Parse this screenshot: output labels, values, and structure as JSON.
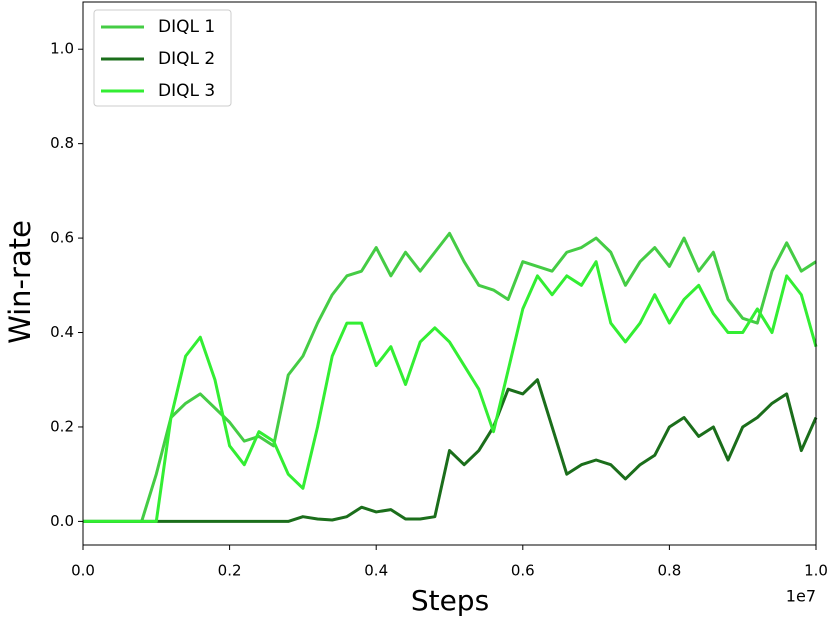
{
  "chart_data": {
    "type": "line",
    "xlabel": "Steps",
    "ylabel": "Win-rate",
    "x_offset_label": "1e7",
    "x": [
      0.0,
      0.02,
      0.04,
      0.06,
      0.08,
      0.1,
      0.12,
      0.14,
      0.16,
      0.18,
      0.2,
      0.22,
      0.24,
      0.26,
      0.28,
      0.3,
      0.32,
      0.34,
      0.36,
      0.38,
      0.4,
      0.42,
      0.44,
      0.46,
      0.48,
      0.5,
      0.52,
      0.54,
      0.56,
      0.58,
      0.6,
      0.62,
      0.64,
      0.66,
      0.68,
      0.7,
      0.72,
      0.74,
      0.76,
      0.78,
      0.8,
      0.82,
      0.84,
      0.86,
      0.88,
      0.9,
      0.92,
      0.94,
      0.96,
      0.98,
      1.0
    ],
    "series": [
      {
        "name": "DIQL 1",
        "color": "#45cc45",
        "values": [
          0,
          0,
          0,
          0,
          0,
          0.1,
          0.22,
          0.25,
          0.27,
          0.24,
          0.21,
          0.17,
          0.18,
          0.16,
          0.31,
          0.35,
          0.42,
          0.48,
          0.52,
          0.53,
          0.58,
          0.52,
          0.57,
          0.53,
          0.57,
          0.61,
          0.55,
          0.5,
          0.49,
          0.47,
          0.55,
          0.54,
          0.53,
          0.57,
          0.58,
          0.6,
          0.57,
          0.5,
          0.55,
          0.58,
          0.54,
          0.6,
          0.53,
          0.57,
          0.47,
          0.43,
          0.42,
          0.53,
          0.59,
          0.53,
          0.55
        ]
      },
      {
        "name": "DIQL 2",
        "color": "#1b6e1b",
        "values": [
          0,
          0,
          0,
          0,
          0,
          0,
          0,
          0,
          0,
          0,
          0,
          0,
          0,
          0,
          0,
          0.01,
          0.005,
          0.003,
          0.01,
          0.03,
          0.02,
          0.025,
          0.005,
          0.005,
          0.01,
          0.15,
          0.12,
          0.15,
          0.2,
          0.28,
          0.27,
          0.3,
          0.2,
          0.1,
          0.12,
          0.13,
          0.12,
          0.09,
          0.12,
          0.14,
          0.2,
          0.22,
          0.18,
          0.2,
          0.13,
          0.2,
          0.22,
          0.25,
          0.27,
          0.15,
          0.22
        ]
      },
      {
        "name": "DIQL 3",
        "color": "#33ee33",
        "values": [
          0,
          0,
          0,
          0,
          0,
          0,
          0.22,
          0.35,
          0.39,
          0.3,
          0.16,
          0.12,
          0.19,
          0.17,
          0.1,
          0.07,
          0.2,
          0.35,
          0.42,
          0.42,
          0.33,
          0.37,
          0.29,
          0.38,
          0.41,
          0.38,
          0.33,
          0.28,
          0.19,
          0.32,
          0.45,
          0.52,
          0.48,
          0.52,
          0.5,
          0.55,
          0.42,
          0.38,
          0.42,
          0.48,
          0.42,
          0.47,
          0.5,
          0.44,
          0.4,
          0.4,
          0.45,
          0.4,
          0.52,
          0.48,
          0.37
        ]
      }
    ],
    "xlim": [
      0,
      1.0
    ],
    "xticks": [
      {
        "value": 0,
        "label": "0.0"
      },
      {
        "value": 0.2,
        "label": "0.2"
      },
      {
        "value": 0.4,
        "label": "0.4"
      },
      {
        "value": 0.6,
        "label": "0.6"
      },
      {
        "value": 0.8,
        "label": "0.8"
      },
      {
        "value": 1.0,
        "label": "1.0"
      }
    ],
    "ylim": [
      -0.05,
      1.1
    ],
    "yticks": [
      {
        "value": 0,
        "label": "0.0"
      },
      {
        "value": 0.2,
        "label": "0.2"
      },
      {
        "value": 0.4,
        "label": "0.4"
      },
      {
        "value": 0.6,
        "label": "0.6"
      },
      {
        "value": 0.8,
        "label": "0.8"
      },
      {
        "value": 1.0,
        "label": "1.0"
      }
    ],
    "grid": false,
    "legend": "upper left"
  }
}
